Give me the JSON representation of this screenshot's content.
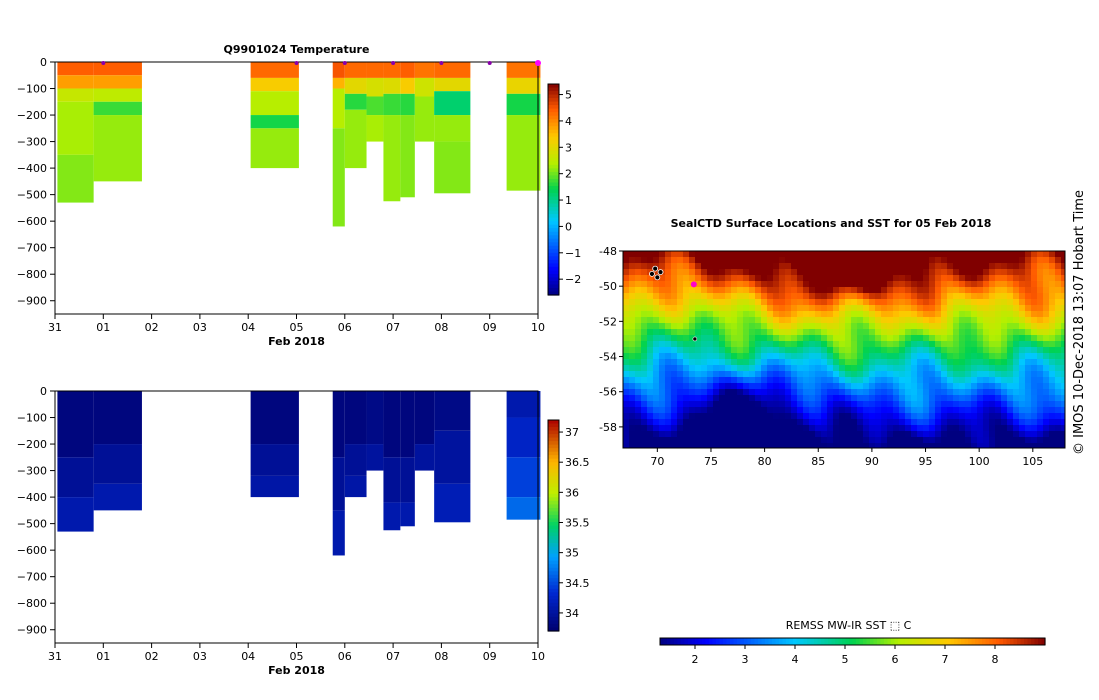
{
  "chart_data": [
    {
      "type": "heatmap",
      "title": "Q9901024  Temperature",
      "xlabel": "Feb 2018",
      "x_tick_labels": [
        "31",
        "01",
        "02",
        "03",
        "04",
        "05",
        "06",
        "07",
        "08",
        "09",
        "10"
      ],
      "y_tick_labels": [
        "0",
        "−100",
        "−200",
        "−300",
        "−400",
        "−500",
        "−600",
        "−700",
        "−800",
        "−900"
      ],
      "xlim_days": [
        0,
        10
      ],
      "ylim": [
        -950,
        0
      ],
      "colorbar_ticks": [
        "5",
        "4",
        "3",
        "2",
        "1",
        "0",
        "−1",
        "−2"
      ],
      "colorbar_range": [
        -2.6,
        5.4
      ],
      "profile_markers_days": [
        1.0,
        5.0,
        6.0,
        7.0,
        8.0,
        9.0,
        10.0
      ],
      "profiles": [
        {
          "x0": 0.05,
          "x1": 0.8,
          "depth": 530,
          "layers": [
            [
              0,
              50,
              4.4
            ],
            [
              50,
              100,
              3.8
            ],
            [
              100,
              150,
              2.6
            ],
            [
              150,
              350,
              2.3
            ],
            [
              350,
              530,
              2.1
            ]
          ]
        },
        {
          "x0": 0.8,
          "x1": 1.8,
          "depth": 450,
          "layers": [
            [
              0,
              50,
              4.4
            ],
            [
              50,
              100,
              3.8
            ],
            [
              100,
              150,
              2.5
            ],
            [
              150,
              200,
              1.7
            ],
            [
              200,
              450,
              2.2
            ]
          ]
        },
        {
          "x0": 4.05,
          "x1": 5.05,
          "depth": 400,
          "layers": [
            [
              0,
              60,
              4.3
            ],
            [
              60,
              110,
              3.3
            ],
            [
              110,
              200,
              2.4
            ],
            [
              200,
              250,
              1.5
            ],
            [
              250,
              400,
              2.2
            ]
          ]
        },
        {
          "x0": 5.75,
          "x1": 6.0,
          "depth": 620,
          "layers": [
            [
              0,
              60,
              4.5
            ],
            [
              60,
              100,
              3.6
            ],
            [
              100,
              250,
              2.4
            ],
            [
              250,
              620,
              2.1
            ]
          ]
        },
        {
          "x0": 6.0,
          "x1": 6.45,
          "depth": 400,
          "layers": [
            [
              0,
              60,
              4.3
            ],
            [
              60,
              120,
              3.0
            ],
            [
              120,
              180,
              1.6
            ],
            [
              180,
              400,
              2.2
            ]
          ]
        },
        {
          "x0": 6.45,
          "x1": 6.8,
          "depth": 300,
          "layers": [
            [
              0,
              60,
              4.3
            ],
            [
              60,
              130,
              2.8
            ],
            [
              130,
              200,
              1.8
            ],
            [
              200,
              300,
              2.3
            ]
          ]
        },
        {
          "x0": 6.8,
          "x1": 7.15,
          "depth": 525,
          "layers": [
            [
              0,
              60,
              4.3
            ],
            [
              60,
              120,
              2.9
            ],
            [
              120,
              200,
              1.7
            ],
            [
              200,
              525,
              2.2
            ]
          ]
        },
        {
          "x0": 7.15,
          "x1": 7.45,
          "depth": 510,
          "layers": [
            [
              0,
              60,
              4.4
            ],
            [
              60,
              120,
              3.3
            ],
            [
              120,
              200,
              1.6
            ],
            [
              200,
              510,
              2.1
            ]
          ]
        },
        {
          "x0": 7.45,
          "x1": 7.85,
          "depth": 300,
          "layers": [
            [
              0,
              60,
              4.2
            ],
            [
              60,
              130,
              2.7
            ],
            [
              130,
              300,
              2.2
            ]
          ]
        },
        {
          "x0": 7.85,
          "x1": 8.6,
          "depth": 495,
          "layers": [
            [
              0,
              60,
              4.3
            ],
            [
              60,
              110,
              3.0
            ],
            [
              110,
              200,
              1.2
            ],
            [
              200,
              300,
              2.2
            ],
            [
              300,
              495,
              2.1
            ]
          ]
        },
        {
          "x0": 9.35,
          "x1": 10.05,
          "depth": 485,
          "layers": [
            [
              0,
              60,
              4.2
            ],
            [
              60,
              120,
              3.1
            ],
            [
              120,
              200,
              1.5
            ],
            [
              200,
              485,
              2.2
            ]
          ]
        }
      ]
    },
    {
      "type": "heatmap",
      "title": "",
      "xlabel": "Feb 2018",
      "x_tick_labels": [
        "31",
        "01",
        "02",
        "03",
        "04",
        "05",
        "06",
        "07",
        "08",
        "09",
        "10"
      ],
      "y_tick_labels": [
        "0",
        "−100",
        "−200",
        "−300",
        "−400",
        "−500",
        "−600",
        "−700",
        "−800",
        "−900"
      ],
      "xlim_days": [
        0,
        10
      ],
      "ylim": [
        -950,
        0
      ],
      "colorbar_ticks": [
        "37",
        "36.5",
        "36",
        "35.5",
        "35",
        "34.5",
        "34"
      ],
      "colorbar_range": [
        33.7,
        37.2
      ],
      "profiles": [
        {
          "x0": 0.05,
          "x1": 0.8,
          "depth": 530,
          "layers": [
            [
              0,
              250,
              33.8
            ],
            [
              250,
              400,
              33.95
            ],
            [
              400,
              530,
              34.1
            ]
          ]
        },
        {
          "x0": 0.8,
          "x1": 1.8,
          "depth": 450,
          "layers": [
            [
              0,
              200,
              33.8
            ],
            [
              200,
              350,
              33.95
            ],
            [
              350,
              450,
              34.1
            ]
          ]
        },
        {
          "x0": 4.05,
          "x1": 5.05,
          "depth": 400,
          "layers": [
            [
              0,
              200,
              33.8
            ],
            [
              200,
              320,
              33.95
            ],
            [
              320,
              400,
              34.05
            ]
          ]
        },
        {
          "x0": 5.75,
          "x1": 6.0,
          "depth": 620,
          "layers": [
            [
              0,
              250,
              33.8
            ],
            [
              250,
              450,
              33.95
            ],
            [
              450,
              620,
              34.1
            ]
          ]
        },
        {
          "x0": 6.0,
          "x1": 6.45,
          "depth": 400,
          "layers": [
            [
              0,
              200,
              33.8
            ],
            [
              200,
              320,
              33.95
            ],
            [
              320,
              400,
              34.05
            ]
          ]
        },
        {
          "x0": 6.45,
          "x1": 6.8,
          "depth": 300,
          "layers": [
            [
              0,
              200,
              33.85
            ],
            [
              200,
              300,
              34.0
            ]
          ]
        },
        {
          "x0": 6.8,
          "x1": 7.15,
          "depth": 525,
          "layers": [
            [
              0,
              250,
              33.8
            ],
            [
              250,
              420,
              33.95
            ],
            [
              420,
              525,
              34.1
            ]
          ]
        },
        {
          "x0": 7.15,
          "x1": 7.45,
          "depth": 510,
          "layers": [
            [
              0,
              250,
              33.8
            ],
            [
              250,
              420,
              33.95
            ],
            [
              420,
              510,
              34.1
            ]
          ]
        },
        {
          "x0": 7.45,
          "x1": 7.85,
          "depth": 300,
          "layers": [
            [
              0,
              200,
              33.8
            ],
            [
              200,
              300,
              34.0
            ]
          ]
        },
        {
          "x0": 7.85,
          "x1": 8.6,
          "depth": 495,
          "layers": [
            [
              0,
              150,
              33.85
            ],
            [
              150,
              350,
              34.0
            ],
            [
              350,
              495,
              34.15
            ]
          ]
        },
        {
          "x0": 9.35,
          "x1": 10.05,
          "depth": 485,
          "layers": [
            [
              0,
              100,
              34.1
            ],
            [
              100,
              250,
              34.25
            ],
            [
              250,
              400,
              34.45
            ],
            [
              400,
              485,
              34.65
            ]
          ]
        }
      ]
    },
    {
      "type": "heatmap",
      "title": "SealCTD Surface Locations and SST for 05 Feb 2018",
      "xlabel": "",
      "x_ticks": [
        70,
        75,
        80,
        85,
        90,
        95,
        100,
        105
      ],
      "y_ticks": [
        -48,
        -50,
        -52,
        -54,
        -56,
        -58
      ],
      "x_tick_labels": [
        "70",
        "75",
        "80",
        "85",
        "90",
        "95",
        "100",
        "105"
      ],
      "y_tick_labels": [
        "-48",
        "-50",
        "-52",
        "-54",
        "-56",
        "-58"
      ],
      "xlim": [
        66.8,
        108
      ],
      "ylim": [
        -59.2,
        -48
      ],
      "colorbar_label": "REMSS MW-IR SST ⬚ C",
      "colorbar_ticks": [
        "2",
        "3",
        "4",
        "5",
        "6",
        "7",
        "8"
      ],
      "colorbar_tick_values": [
        2,
        3,
        4,
        5,
        6,
        7,
        8
      ],
      "colorbar_range": [
        1.3,
        9.0
      ],
      "seal_locations": [
        [
          69.5,
          -49.3
        ],
        [
          70.0,
          -49.5
        ],
        [
          69.8,
          -49.0
        ],
        [
          70.3,
          -49.2
        ]
      ],
      "current_location": [
        73.4,
        -49.9
      ],
      "other_location": [
        73.5,
        -53.0
      ]
    }
  ],
  "side_label": "©  IMOS 10-Dec-2018 13:07 Hobart Time"
}
